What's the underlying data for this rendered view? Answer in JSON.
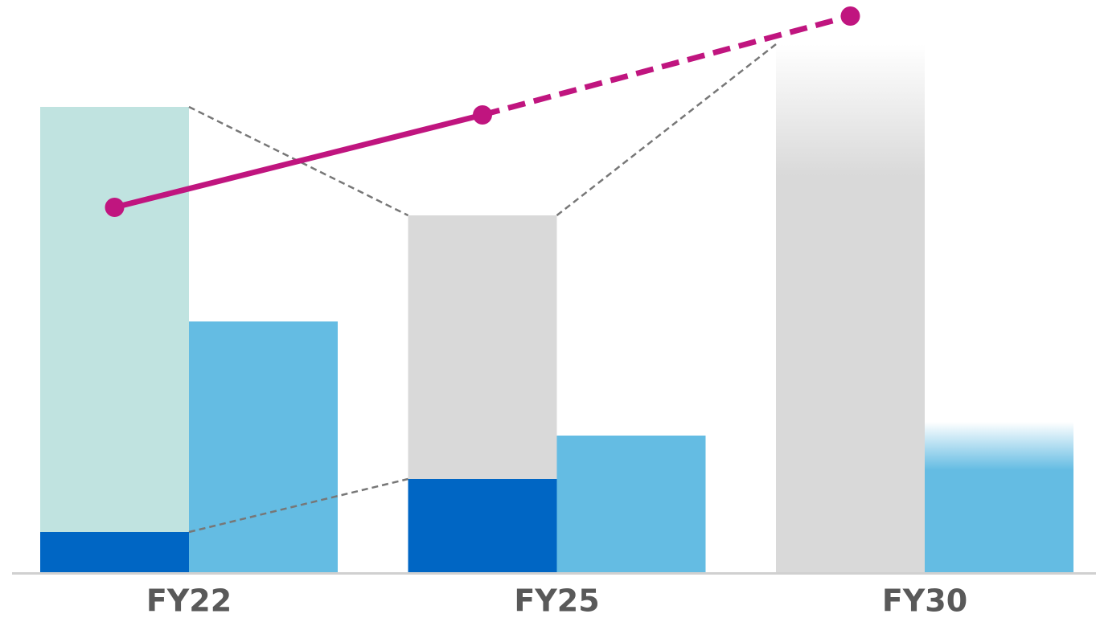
{
  "chart_data": {
    "type": "bar",
    "categories": [
      "FY22",
      "FY25",
      "FY30"
    ],
    "ylim": [
      0,
      712
    ],
    "forecast_index": 2,
    "stacks": [
      {
        "color": "#0066c4",
        "values": [
          50,
          116,
          null
        ]
      },
      {
        "colors": [
          "#c0e3e0",
          "#d9d9d9",
          "#d9d9d9"
        ],
        "values": [
          529,
          328,
          657
        ]
      }
    ],
    "side_bar": {
      "color": "#64bce3",
      "values": [
        312,
        170,
        187
      ]
    },
    "line": {
      "color": "#c0157f",
      "values": [
        454,
        569,
        692
      ]
    }
  }
}
